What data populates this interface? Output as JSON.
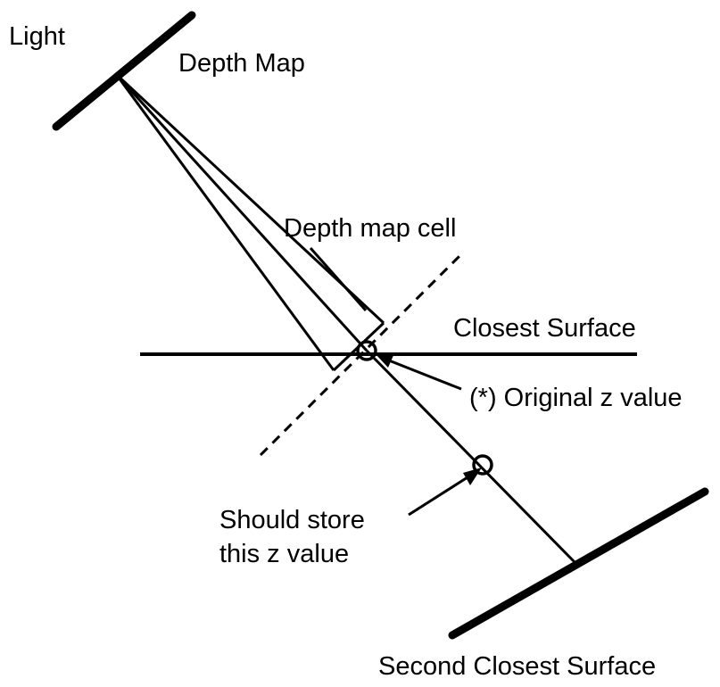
{
  "labels": {
    "light": "Light",
    "depth_map": "Depth Map",
    "depth_map_cell": "Depth map cell",
    "closest_surface": "Closest Surface",
    "original_z": "(*) Original z value",
    "should_store_line1": "Should store",
    "should_store_line2": "this z value",
    "second_closest_surface": "Second Closest Surface"
  }
}
